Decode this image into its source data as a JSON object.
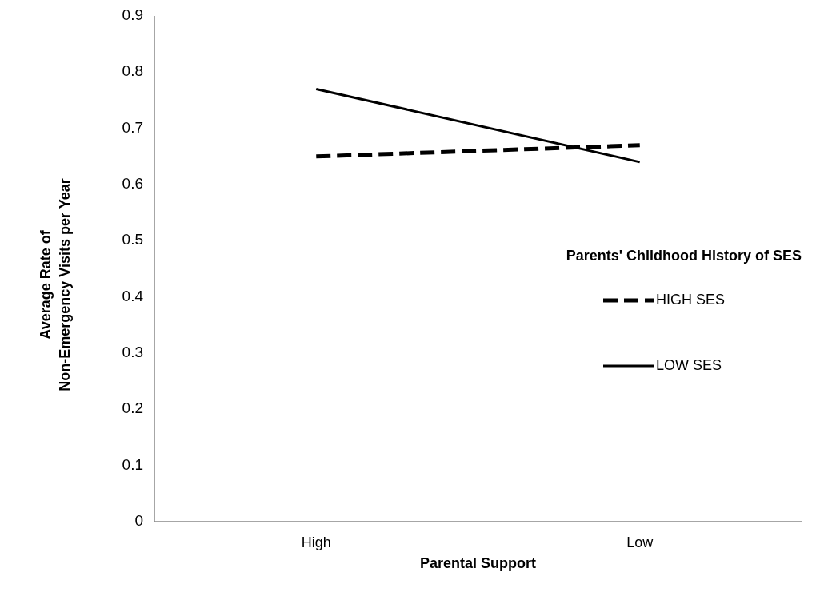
{
  "chart_data": {
    "type": "line",
    "xlabel": "Parental Support",
    "ylabel": "Average Rate of\nNon-Emergency Visits per Year",
    "legend_title": "Parents' Childhood History of SES",
    "categories": [
      "High",
      "Low"
    ],
    "series": [
      {
        "name": "HIGH SES",
        "color": "#000000",
        "line_style": "dashed",
        "values": [
          0.65,
          0.67
        ]
      },
      {
        "name": "LOW SES",
        "color": "#000000",
        "line_style": "solid",
        "values": [
          0.77,
          0.64
        ]
      }
    ],
    "ylim": [
      0,
      0.9
    ],
    "yticks": [
      {
        "value": 0,
        "label": "0"
      },
      0.1,
      0.2,
      0.3,
      0.4,
      0.5,
      0.6,
      0.7,
      0.8,
      0.9
    ],
    "grid": false,
    "legend": "right",
    "marker": "none"
  }
}
